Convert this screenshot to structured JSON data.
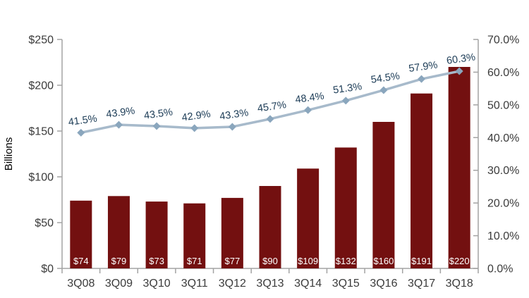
{
  "chart_data": {
    "type": "bar",
    "subtype": "combo-bar-line-dual-axis",
    "title": "",
    "categories": [
      "3Q08",
      "3Q09",
      "3Q10",
      "3Q11",
      "3Q12",
      "3Q13",
      "3Q14",
      "3Q15",
      "3Q16",
      "3Q17",
      "3Q18"
    ],
    "series": [
      {
        "name": "dollar-amount-billions",
        "type": "bar",
        "axis": "left",
        "values": [
          74,
          79,
          73,
          71,
          77,
          90,
          109,
          132,
          160,
          191,
          220
        ],
        "labels": [
          "$74",
          "$79",
          "$73",
          "$71",
          "$77",
          "$90",
          "$109",
          "$132",
          "$160",
          "$191",
          "$220"
        ]
      },
      {
        "name": "percentage-share",
        "type": "line",
        "axis": "right",
        "values": [
          41.5,
          43.9,
          43.5,
          42.9,
          43.3,
          45.7,
          48.4,
          51.3,
          54.5,
          57.9,
          60.3
        ],
        "labels": [
          "41.5%",
          "43.9%",
          "43.5%",
          "42.9%",
          "43.3%",
          "45.7%",
          "48.4%",
          "51.3%",
          "54.5%",
          "57.9%",
          "60.3%"
        ]
      }
    ],
    "left_axis": {
      "title": "Billions",
      "min": 0,
      "max": 250,
      "step": 50,
      "tick_values": [
        0,
        50,
        100,
        150,
        200,
        250
      ],
      "tick_labels": [
        "$0",
        "$50",
        "$100",
        "$150",
        "$200",
        "$250"
      ]
    },
    "right_axis": {
      "title": "",
      "min": 0,
      "max": 70,
      "step": 10,
      "tick_values": [
        0,
        10,
        20,
        30,
        40,
        50,
        60,
        70
      ],
      "tick_labels": [
        "0.0%",
        "10.0%",
        "20.0%",
        "30.0%",
        "40.0%",
        "50.0%",
        "60.0%",
        "70.0%"
      ]
    },
    "grid": "off",
    "legend": "none",
    "colors": {
      "bar_fill": "#731010",
      "bar_label_text": "#ffffff",
      "line_stroke": "#a7bacb",
      "marker_fill": "#8aa6bd",
      "line_label_text": "#21405a",
      "axis_text": "#3b3b3b",
      "axis_title_text": "#000000",
      "axis_line": "#a3a3a3"
    }
  }
}
